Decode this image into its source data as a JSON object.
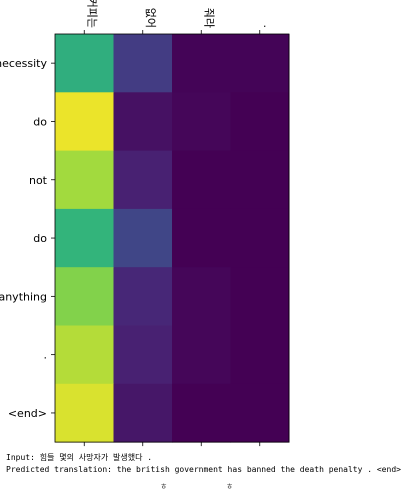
{
  "chart_data": {
    "type": "heatmap",
    "x_tokens": [
      "커피는",
      "없어",
      "줘라",
      "."
    ],
    "y_tokens": [
      "necessity",
      "do",
      "not",
      "do",
      "anything",
      ".",
      "<end>"
    ],
    "values": [
      [
        0.72,
        0.22,
        0.01,
        0.01
      ],
      [
        0.98,
        0.06,
        0.02,
        0.0
      ],
      [
        0.9,
        0.12,
        0.0,
        0.0
      ],
      [
        0.74,
        0.26,
        0.0,
        0.0
      ],
      [
        0.86,
        0.14,
        0.02,
        0.0
      ],
      [
        0.92,
        0.12,
        0.02,
        0.0
      ],
      [
        0.96,
        0.08,
        0.0,
        0.0
      ]
    ],
    "colormap": "viridis",
    "vmin": 0,
    "vmax": 1
  },
  "captions": {
    "input": "Input: 힘들 몇의 사망자가 발생했다 .",
    "predicted": "Predicted translation: the british government has banned the death penalty . <end>"
  },
  "footer": {
    "marks": "ㅎ ㅎ"
  }
}
